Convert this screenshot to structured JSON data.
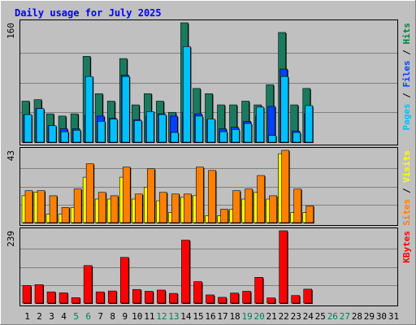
{
  "chart_data": {
    "type": "bar",
    "title": "Daily usage for July 2025",
    "categories": [
      "1",
      "2",
      "3",
      "4",
      "5",
      "6",
      "7",
      "8",
      "9",
      "10",
      "11",
      "12",
      "13",
      "14",
      "15",
      "16",
      "17",
      "18",
      "19",
      "20",
      "21",
      "22",
      "23",
      "24",
      "25",
      "26",
      "27",
      "28",
      "29",
      "30",
      "31"
    ],
    "weekend_days": [
      "5",
      "6",
      "12",
      "13",
      "19",
      "20",
      "26",
      "27"
    ],
    "panels": [
      {
        "id": "top",
        "max_label": "160",
        "ylim": [
          0,
          160
        ],
        "legend": [
          {
            "text": "Pages",
            "color": "#00c0ff"
          },
          {
            "text": " / ",
            "color": "#000000"
          },
          {
            "text": "Files",
            "color": "#0040ff"
          },
          {
            "text": " / ",
            "color": "#000000"
          },
          {
            "text": "Hits",
            "color": "#008040"
          }
        ],
        "series": [
          {
            "name": "Hits",
            "color": "#1a7a60",
            "values": [
              55,
              57,
              38,
              35,
              38,
              115,
              65,
              55,
              112,
              50,
              65,
              55,
              40,
              160,
              72,
              65,
              50,
              50,
              55,
              50,
              77,
              147,
              50,
              72,
              0,
              0,
              0,
              0,
              0,
              0,
              0
            ]
          },
          {
            "name": "Files",
            "color": "#0040ff",
            "values": [
              37,
              45,
              22,
              18,
              18,
              36,
              35,
              32,
              90,
              30,
              35,
              38,
              35,
              40,
              38,
              30,
              18,
              20,
              28,
              35,
              48,
              98,
              15,
              38,
              0,
              0,
              0,
              0,
              0,
              0,
              0
            ]
          },
          {
            "name": "Pages",
            "color": "#00c0ff",
            "values": [
              37,
              45,
              22,
              14,
              16,
              88,
              28,
              31,
              88,
              29,
              41,
              37,
              13,
              128,
              35,
              31,
              14,
              17,
              25,
              47,
              9,
              88,
              13,
              49,
              0,
              0,
              0,
              0,
              0,
              0,
              0
            ]
          }
        ]
      },
      {
        "id": "middle",
        "max_label": "43",
        "ylim": [
          0,
          43
        ],
        "legend": [
          {
            "text": "Sites",
            "color": "#ff8000"
          },
          {
            "text": " / ",
            "color": "#000000"
          },
          {
            "text": "Visits",
            "color": "#ffff00"
          }
        ],
        "series": [
          {
            "name": "Visits",
            "color": "#ffff00",
            "values": [
              16,
              18,
              5,
              5,
              9,
              27,
              14,
              14,
              27,
              14,
              21,
              13,
              6,
              15,
              16,
              4,
              4,
              8,
              14,
              18,
              14,
              41,
              6,
              6,
              0,
              0,
              0,
              0,
              0,
              0,
              0
            ]
          },
          {
            "name": "Sites",
            "color": "#ff8000",
            "values": [
              19,
              19,
              16,
              9,
              20,
              35,
              18,
              16,
              33,
              17,
              32,
              18,
              17,
              17,
              33,
              31,
              8,
              19,
              20,
              28,
              16,
              43,
              20,
              10,
              0,
              0,
              0,
              0,
              0,
              0,
              0
            ]
          }
        ]
      },
      {
        "id": "bottom",
        "max_label": "239",
        "ylim": [
          0,
          239
        ],
        "legend": [
          {
            "text": "KBytes",
            "color": "#ff0000"
          }
        ],
        "series": [
          {
            "name": "KBytes",
            "color": "#ff0000",
            "values": [
              58,
              61,
              37,
              34,
              18,
              124,
              37,
              40,
              151,
              45,
              39,
              43,
              32,
              208,
              71,
              27,
              19,
              33,
              39,
              85,
              17,
              239,
              25,
              46,
              0,
              0,
              0,
              0,
              0,
              0,
              0
            ]
          }
        ]
      }
    ]
  }
}
